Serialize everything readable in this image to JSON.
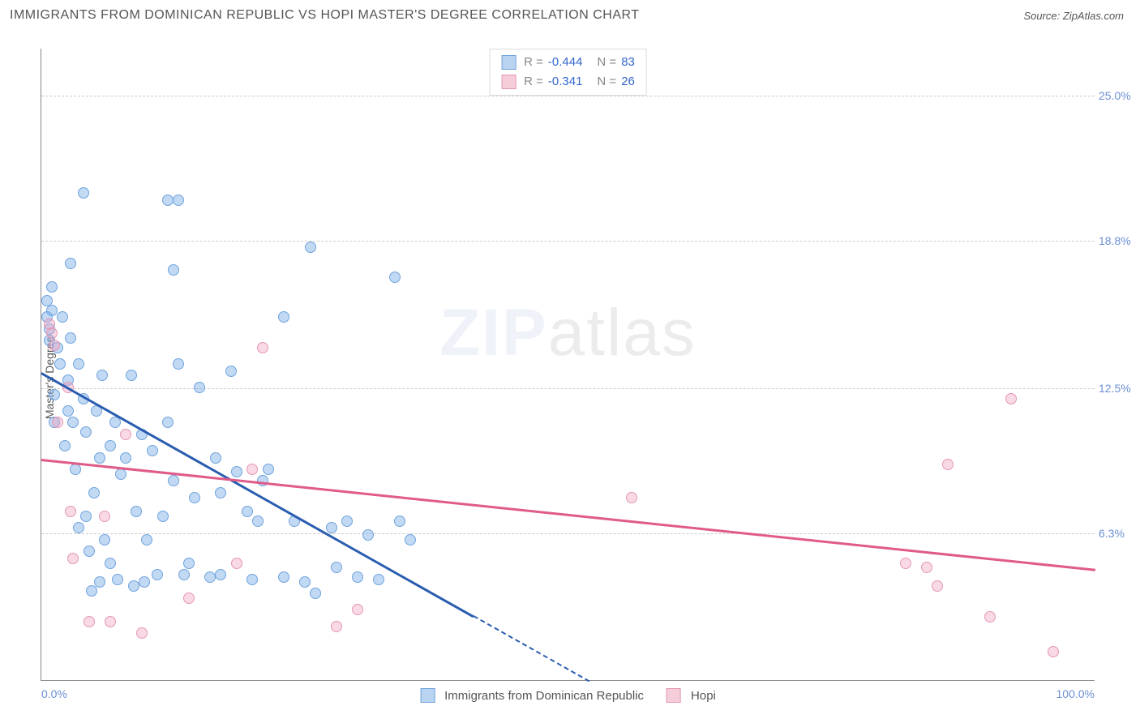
{
  "header": {
    "title": "IMMIGRANTS FROM DOMINICAN REPUBLIC VS HOPI MASTER'S DEGREE CORRELATION CHART",
    "source": "Source: ZipAtlas.com"
  },
  "watermark": {
    "bold": "ZIP",
    "thin": "atlas"
  },
  "chart": {
    "type": "scatter",
    "ylabel": "Master's Degree",
    "xlim": [
      0,
      100
    ],
    "ylim": [
      0,
      27
    ],
    "yticks": [
      {
        "v": 25.0,
        "label": "25.0%"
      },
      {
        "v": 18.8,
        "label": "18.8%"
      },
      {
        "v": 12.5,
        "label": "12.5%"
      },
      {
        "v": 6.3,
        "label": "6.3%"
      }
    ],
    "xticks": [
      {
        "v": 0,
        "label": "0.0%",
        "align": "left"
      },
      {
        "v": 100,
        "label": "100.0%",
        "align": "right"
      }
    ],
    "marker_radius": 7,
    "marker_opacity": 0.5,
    "background": "#ffffff",
    "grid_color": "#cccccc",
    "axis_color": "#888888",
    "series": [
      {
        "name": "Immigrants from Dominican Republic",
        "color_fill": "rgba(120,170,230,0.45)",
        "color_stroke": "#6fa3dd",
        "swatch_fill": "#b9d4f0",
        "swatch_stroke": "#6fa3dd",
        "R": "-0.444",
        "N": "83",
        "trend": {
          "x1": 0,
          "y1": 13.2,
          "x2": 41,
          "y2": 2.8,
          "color": "#2a5db0",
          "width": 2.5,
          "dash_extend_to_x": 52
        },
        "points": [
          [
            0.5,
            16.2
          ],
          [
            0.5,
            15.5
          ],
          [
            0.8,
            15.0
          ],
          [
            0.8,
            14.5
          ],
          [
            1.0,
            16.8
          ],
          [
            1.0,
            15.8
          ],
          [
            1.2,
            12.2
          ],
          [
            1.2,
            11.0
          ],
          [
            1.5,
            14.2
          ],
          [
            1.8,
            13.5
          ],
          [
            2.0,
            15.5
          ],
          [
            2.2,
            10.0
          ],
          [
            2.5,
            11.5
          ],
          [
            2.5,
            12.8
          ],
          [
            2.8,
            17.8
          ],
          [
            2.8,
            14.6
          ],
          [
            3.0,
            11.0
          ],
          [
            3.2,
            9.0
          ],
          [
            3.5,
            6.5
          ],
          [
            3.5,
            13.5
          ],
          [
            4.0,
            12.0
          ],
          [
            4.0,
            20.8
          ],
          [
            4.2,
            7.0
          ],
          [
            4.2,
            10.6
          ],
          [
            4.5,
            5.5
          ],
          [
            4.8,
            3.8
          ],
          [
            5.0,
            8.0
          ],
          [
            5.2,
            11.5
          ],
          [
            5.5,
            9.5
          ],
          [
            5.5,
            4.2
          ],
          [
            5.8,
            13.0
          ],
          [
            6.0,
            6.0
          ],
          [
            6.5,
            10.0
          ],
          [
            6.5,
            5.0
          ],
          [
            7.0,
            11.0
          ],
          [
            7.2,
            4.3
          ],
          [
            7.5,
            8.8
          ],
          [
            8.0,
            9.5
          ],
          [
            8.5,
            13.0
          ],
          [
            8.8,
            4.0
          ],
          [
            9.0,
            7.2
          ],
          [
            9.5,
            10.5
          ],
          [
            9.8,
            4.2
          ],
          [
            10.0,
            6.0
          ],
          [
            10.5,
            9.8
          ],
          [
            11.0,
            4.5
          ],
          [
            11.5,
            7.0
          ],
          [
            12.0,
            20.5
          ],
          [
            12.0,
            11.0
          ],
          [
            12.5,
            17.5
          ],
          [
            12.5,
            8.5
          ],
          [
            13.0,
            20.5
          ],
          [
            13.0,
            13.5
          ],
          [
            13.5,
            4.5
          ],
          [
            14.0,
            5.0
          ],
          [
            14.5,
            7.8
          ],
          [
            15.0,
            12.5
          ],
          [
            16.0,
            4.4
          ],
          [
            16.5,
            9.5
          ],
          [
            17.0,
            8.0
          ],
          [
            17.0,
            4.5
          ],
          [
            18.0,
            13.2
          ],
          [
            18.5,
            8.9
          ],
          [
            19.5,
            7.2
          ],
          [
            20.0,
            4.3
          ],
          [
            20.5,
            6.8
          ],
          [
            21.0,
            8.5
          ],
          [
            21.5,
            9.0
          ],
          [
            23.0,
            15.5
          ],
          [
            23.0,
            4.4
          ],
          [
            24.0,
            6.8
          ],
          [
            25.0,
            4.2
          ],
          [
            25.5,
            18.5
          ],
          [
            26.0,
            3.7
          ],
          [
            27.5,
            6.5
          ],
          [
            28.0,
            4.8
          ],
          [
            29.0,
            6.8
          ],
          [
            30.0,
            4.4
          ],
          [
            31.0,
            6.2
          ],
          [
            32.0,
            4.3
          ],
          [
            33.5,
            17.2
          ],
          [
            34.0,
            6.8
          ],
          [
            35.0,
            6.0
          ]
        ]
      },
      {
        "name": "Hopi",
        "color_fill": "rgba(240,160,190,0.4)",
        "color_stroke": "#e497b4",
        "swatch_fill": "#f5cdd9",
        "swatch_stroke": "#e497b4",
        "R": "-0.341",
        "N": "26",
        "trend": {
          "x1": 0,
          "y1": 9.5,
          "x2": 100,
          "y2": 4.8,
          "color": "#e05a8a",
          "width": 2.5
        },
        "points": [
          [
            0.8,
            15.2
          ],
          [
            1.0,
            14.8
          ],
          [
            1.2,
            14.3
          ],
          [
            1.5,
            11.0
          ],
          [
            2.5,
            12.5
          ],
          [
            2.8,
            7.2
          ],
          [
            3.0,
            5.2
          ],
          [
            4.5,
            2.5
          ],
          [
            6.0,
            7.0
          ],
          [
            6.5,
            2.5
          ],
          [
            8.0,
            10.5
          ],
          [
            9.5,
            2.0
          ],
          [
            14.0,
            3.5
          ],
          [
            18.5,
            5.0
          ],
          [
            20.0,
            9.0
          ],
          [
            21.0,
            14.2
          ],
          [
            28.0,
            2.3
          ],
          [
            30.0,
            3.0
          ],
          [
            56.0,
            7.8
          ],
          [
            84.0,
            4.8
          ],
          [
            85.0,
            4.0
          ],
          [
            86.0,
            9.2
          ],
          [
            90.0,
            2.7
          ],
          [
            92.0,
            12.0
          ],
          [
            96.0,
            1.2
          ],
          [
            82.0,
            5.0
          ]
        ]
      }
    ],
    "legend_bottom": [
      {
        "label": "Immigrants from Dominican Republic",
        "swatch_fill": "#b9d4f0",
        "swatch_stroke": "#6fa3dd"
      },
      {
        "label": "Hopi",
        "swatch_fill": "#f5cdd9",
        "swatch_stroke": "#e497b4"
      }
    ]
  }
}
